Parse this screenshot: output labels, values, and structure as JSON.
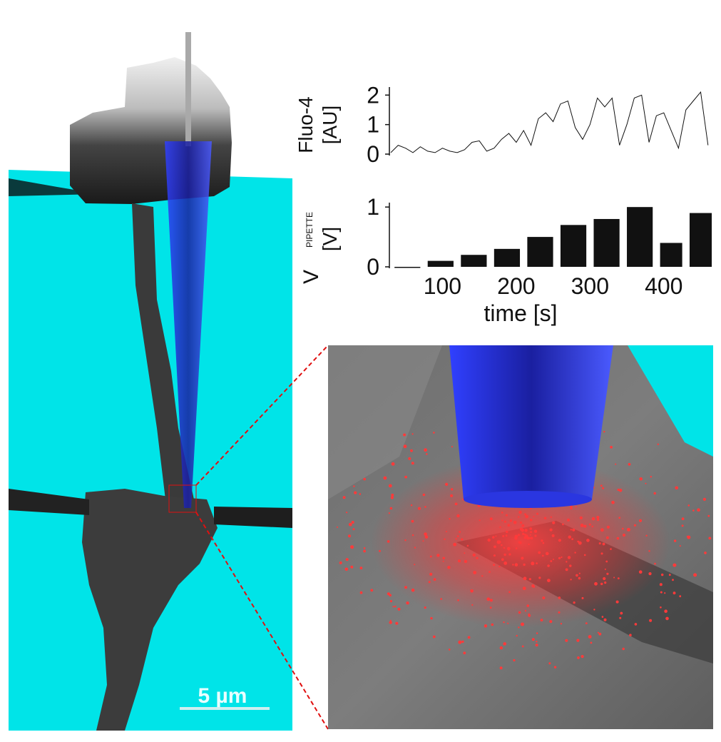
{
  "scale_bar": {
    "label": "5 µm"
  },
  "colors": {
    "substrate": "#00e4e8",
    "cell": "#5a5a5a",
    "pipette": "#1f2ee0",
    "particles": "#ff3a3a",
    "zoom_lines": "#e01010"
  },
  "chart_data": [
    {
      "type": "line",
      "ylabel_line1": "Fluo-4",
      "ylabel_line2": "[AU]",
      "ylim": [
        0,
        2.2
      ],
      "xlim": [
        30,
        465
      ],
      "yticks": [
        "0",
        "1",
        "2"
      ],
      "ytick_values": [
        0,
        1,
        2
      ],
      "x": [
        30,
        40,
        50,
        60,
        70,
        80,
        90,
        100,
        110,
        120,
        130,
        140,
        150,
        160,
        170,
        180,
        190,
        200,
        210,
        220,
        230,
        240,
        250,
        260,
        270,
        280,
        290,
        300,
        310,
        320,
        330,
        340,
        350,
        360,
        370,
        380,
        390,
        400,
        410,
        420,
        430,
        440,
        450,
        460
      ],
      "values": [
        0.05,
        0.3,
        0.2,
        0.05,
        0.25,
        0.1,
        0.05,
        0.2,
        0.1,
        0.05,
        0.15,
        0.4,
        0.45,
        0.1,
        0.2,
        0.5,
        0.7,
        0.4,
        0.8,
        0.3,
        1.2,
        1.4,
        1.1,
        1.7,
        1.8,
        0.9,
        0.5,
        1.0,
        1.9,
        1.6,
        1.9,
        0.3,
        1.0,
        1.9,
        2.0,
        0.4,
        1.3,
        1.4,
        0.8,
        0.2,
        1.5,
        1.8,
        2.1,
        0.3
      ]
    },
    {
      "type": "bar",
      "ylabel_main": "V",
      "ylabel_sub": "PIPETTE",
      "ylabel_line2": "[V]",
      "ylim": [
        0,
        1.05
      ],
      "xlim": [
        30,
        465
      ],
      "yticks": [
        "0",
        "1"
      ],
      "ytick_values": [
        0,
        1
      ],
      "xticks": [
        "100",
        "200",
        "300",
        "400"
      ],
      "xtick_values": [
        100,
        200,
        300,
        400
      ],
      "xlabel": "time [s]",
      "bars": [
        {
          "start": 35,
          "end": 70,
          "value": 0.0
        },
        {
          "start": 80,
          "end": 115,
          "value": 0.1
        },
        {
          "start": 125,
          "end": 160,
          "value": 0.2
        },
        {
          "start": 170,
          "end": 205,
          "value": 0.3
        },
        {
          "start": 215,
          "end": 250,
          "value": 0.5
        },
        {
          "start": 260,
          "end": 295,
          "value": 0.7
        },
        {
          "start": 305,
          "end": 340,
          "value": 0.8
        },
        {
          "start": 350,
          "end": 385,
          "value": 1.0
        },
        {
          "start": 395,
          "end": 425,
          "value": 0.4
        },
        {
          "start": 435,
          "end": 470,
          "value": 0.9
        }
      ]
    }
  ]
}
